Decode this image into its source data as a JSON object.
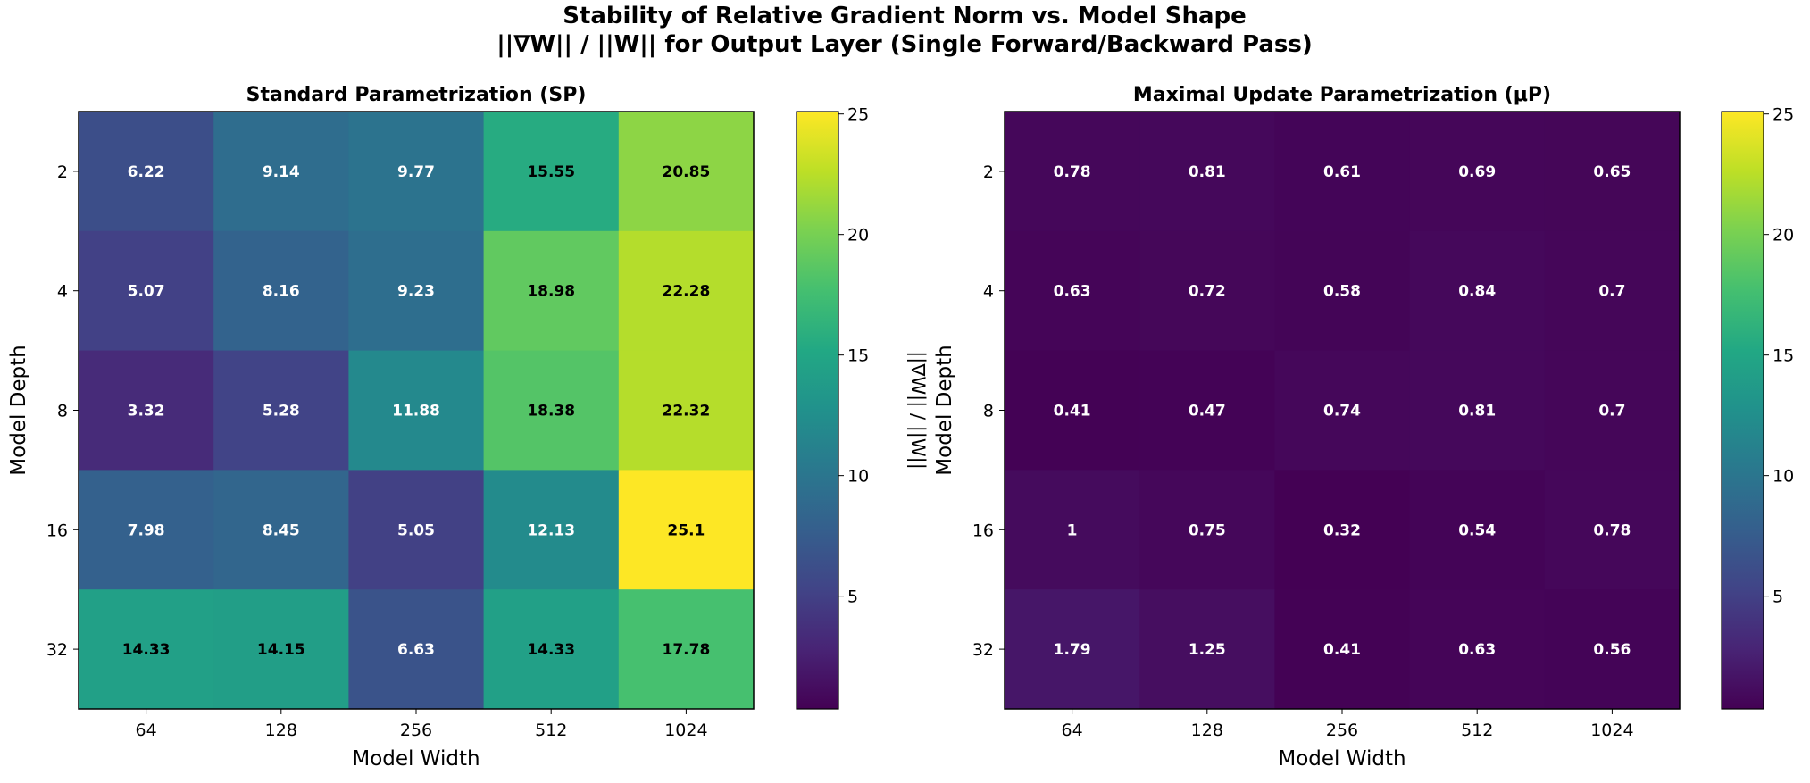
{
  "chart_data": {
    "title_line1": "Stability of Relative Gradient Norm vs. Model Shape",
    "title_line2": "||∇W|| / ||W|| for Output Layer (Single Forward/Backward Pass)",
    "colormap": "viridis",
    "panels": [
      {
        "type": "heatmap",
        "title": "Standard Parametrization (SP)",
        "xlabel": "Model Width",
        "ylabel": "Model Depth",
        "x_categories": [
          "64",
          "128",
          "256",
          "512",
          "1024"
        ],
        "y_categories": [
          "2",
          "4",
          "8",
          "16",
          "32"
        ],
        "values": [
          [
            6.22,
            9.14,
            9.77,
            15.55,
            20.85
          ],
          [
            5.07,
            8.16,
            9.23,
            18.98,
            22.28
          ],
          [
            3.32,
            5.28,
            11.88,
            18.38,
            22.32
          ],
          [
            7.98,
            8.45,
            5.05,
            12.13,
            25.1
          ],
          [
            14.33,
            14.15,
            6.63,
            14.33,
            17.78
          ]
        ],
        "colorbar": {
          "label": "||∇W|| / ||W||",
          "range": [
            0.32,
            25.1
          ],
          "ticks": [
            5,
            10,
            15,
            20,
            25
          ]
        }
      },
      {
        "type": "heatmap",
        "title": "Maximal Update Parametrization (μP)",
        "xlabel": "Model Width",
        "ylabel": "Model Depth",
        "x_categories": [
          "64",
          "128",
          "256",
          "512",
          "1024"
        ],
        "y_categories": [
          "2",
          "4",
          "8",
          "16",
          "32"
        ],
        "values": [
          [
            0.78,
            0.81,
            0.61,
            0.69,
            0.65
          ],
          [
            0.63,
            0.72,
            0.58,
            0.84,
            0.7
          ],
          [
            0.41,
            0.47,
            0.74,
            0.81,
            0.7
          ],
          [
            1.0,
            0.75,
            0.32,
            0.54,
            0.78
          ],
          [
            1.79,
            1.25,
            0.41,
            0.63,
            0.56
          ]
        ],
        "colorbar": {
          "label": "||∇W|| / ||W||",
          "range": [
            0.32,
            25.1
          ],
          "ticks": [
            5,
            10,
            15,
            20,
            25
          ]
        }
      }
    ]
  }
}
